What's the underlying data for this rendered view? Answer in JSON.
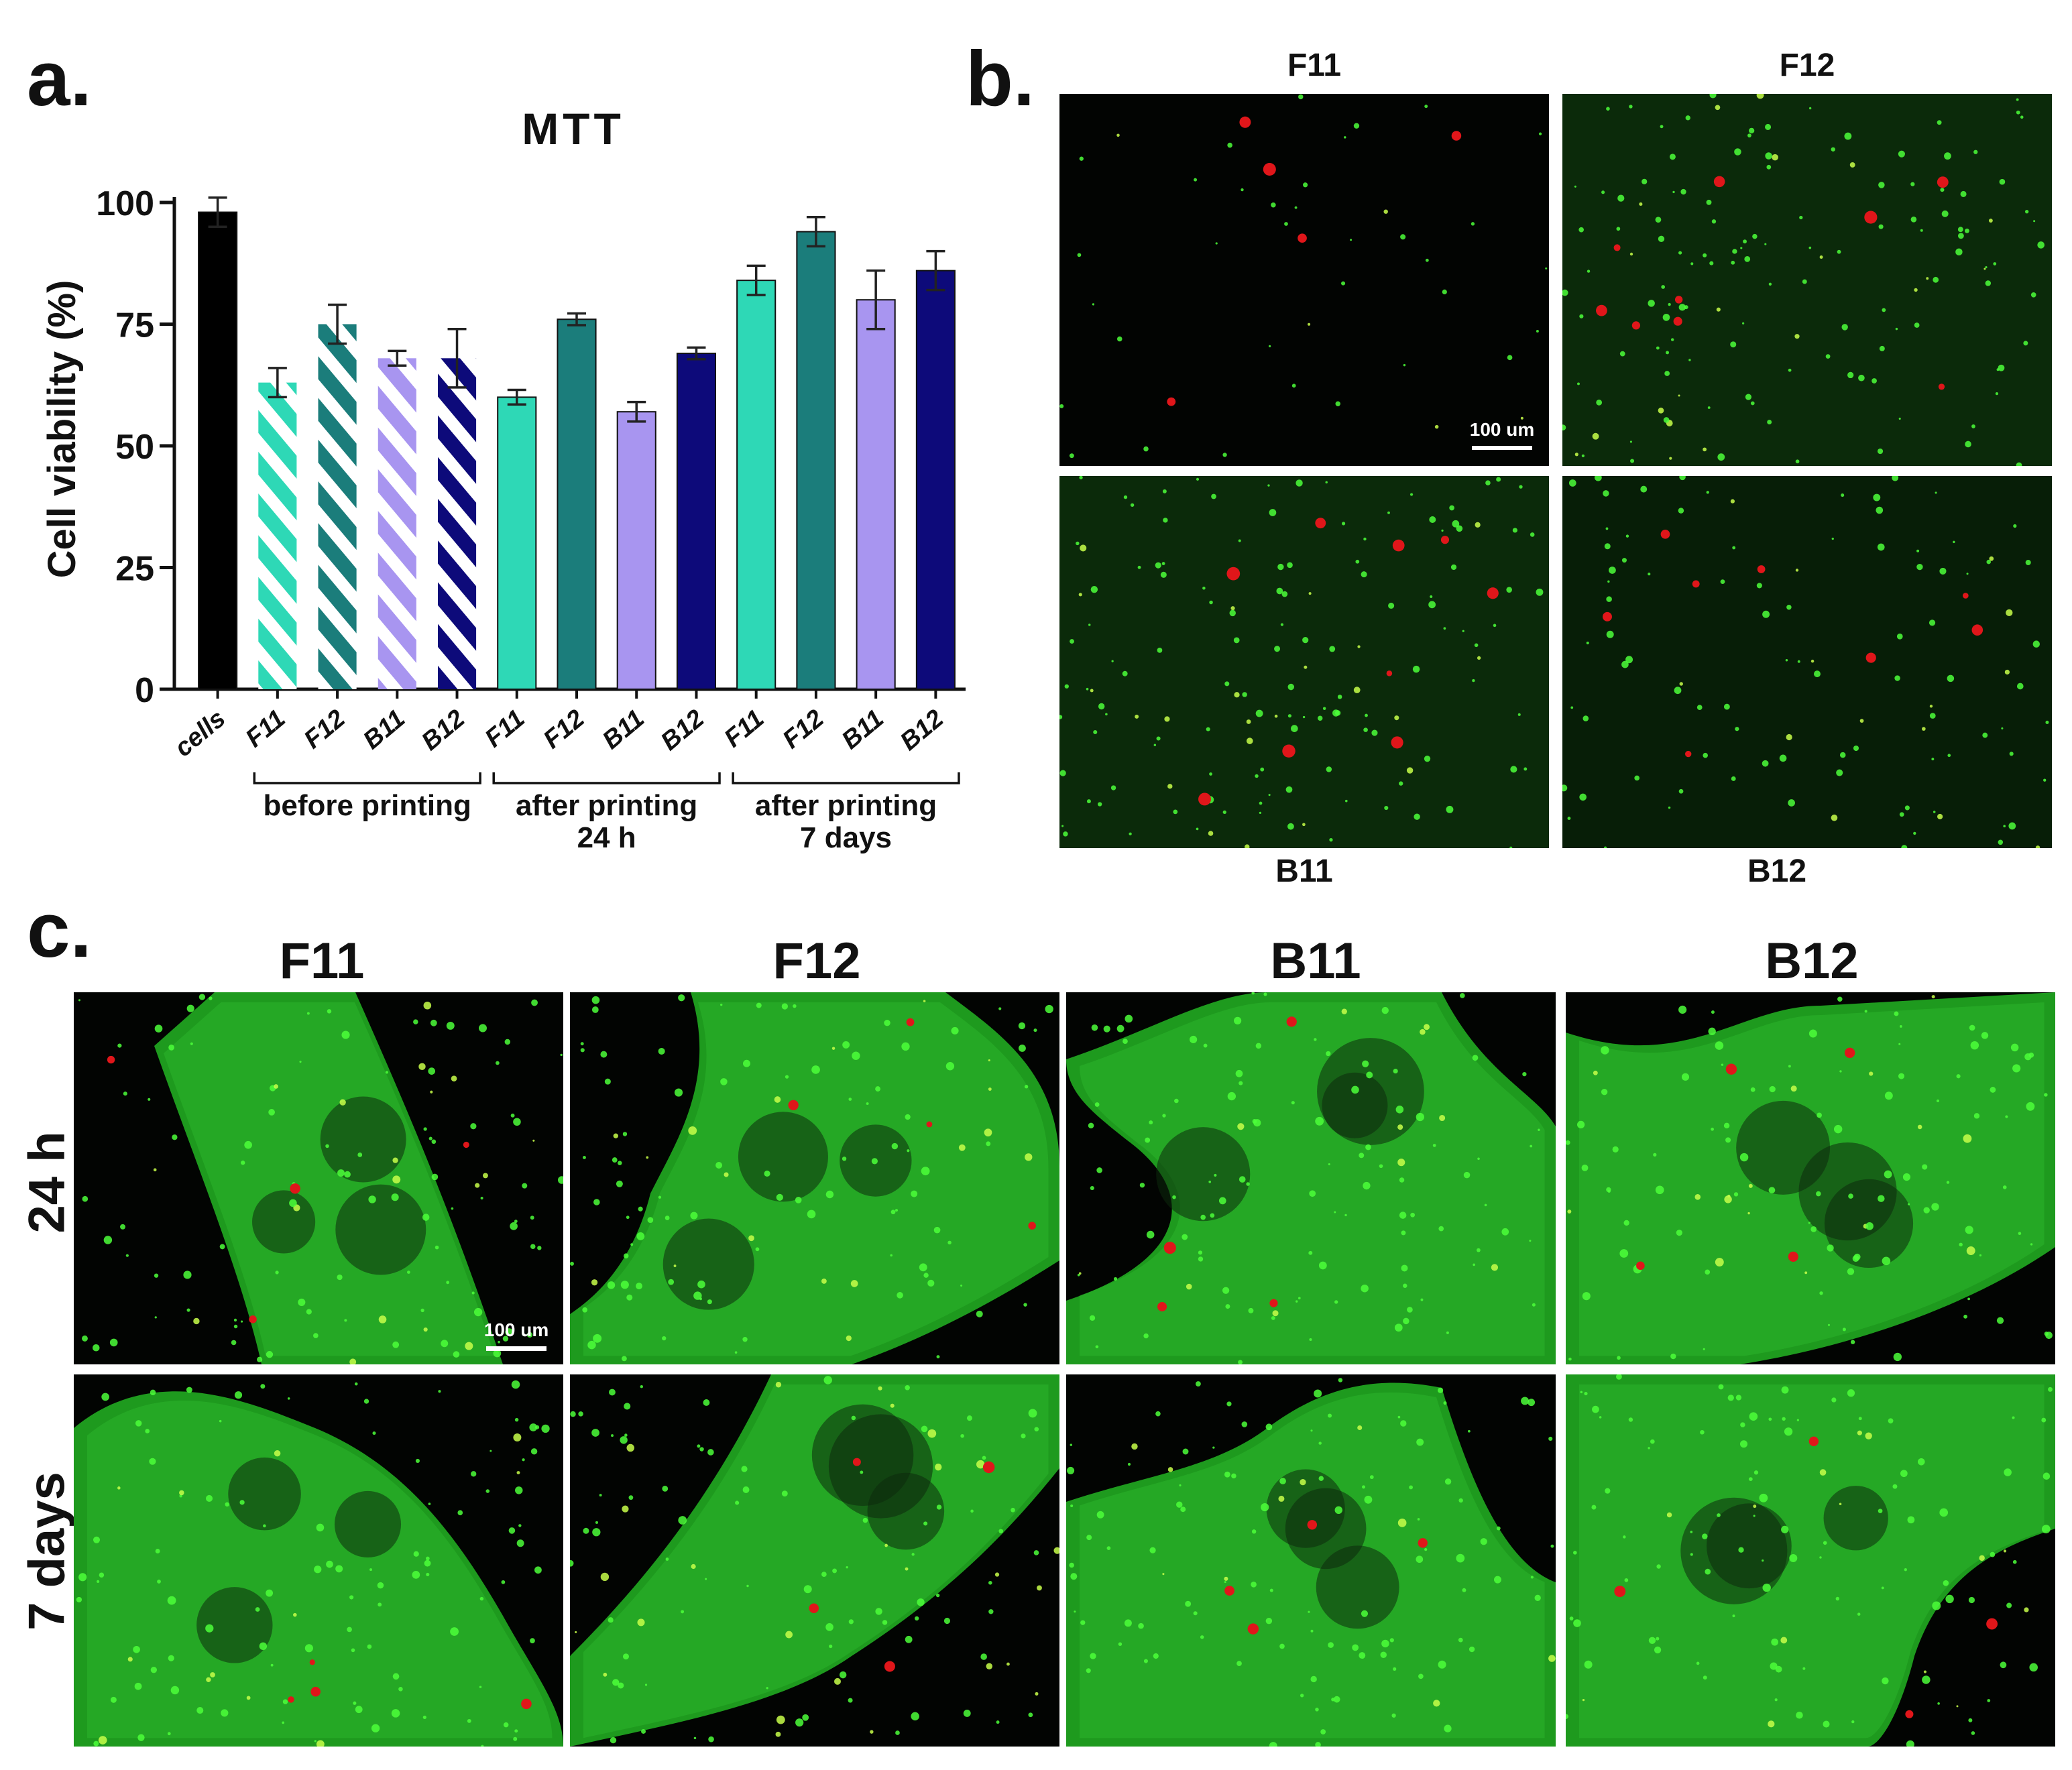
{
  "panels": {
    "a": "a.",
    "b": "b.",
    "c": "c."
  },
  "chart_data": {
    "type": "bar",
    "title": "MTT",
    "ylabel": "Cell viability (%)",
    "xlabel": "",
    "ylim": [
      0,
      100
    ],
    "yticks": [
      0,
      25,
      50,
      75,
      100
    ],
    "categories": [
      "cells",
      "F11",
      "F12",
      "B11",
      "B12",
      "F11",
      "F12",
      "B11",
      "B12",
      "F11",
      "F12",
      "B11",
      "B12"
    ],
    "values": [
      98,
      63,
      75,
      68,
      68,
      60,
      76,
      57,
      69,
      84,
      94,
      80,
      86
    ],
    "errors": [
      3,
      3,
      4,
      1.5,
      6,
      1.5,
      1.2,
      2,
      1.2,
      3,
      3,
      6,
      4
    ],
    "colors": [
      "#000000",
      "#2ed8b6",
      "#1b7d7b",
      "#a895f0",
      "#0d0a7a",
      "#2ed8b6",
      "#1b7d7b",
      "#a895f0",
      "#0d0a7a",
      "#2ed8b6",
      "#1b7d7b",
      "#a895f0",
      "#0d0a7a"
    ],
    "hatched": [
      false,
      true,
      true,
      true,
      true,
      false,
      false,
      false,
      false,
      false,
      false,
      false,
      false
    ],
    "groups": [
      {
        "lines": [
          "before printing"
        ],
        "from": 1,
        "to": 4
      },
      {
        "lines": [
          "after printing",
          "24 h"
        ],
        "from": 5,
        "to": 8
      },
      {
        "lines": [
          "after printing",
          "7 days"
        ],
        "from": 9,
        "to": 12
      }
    ]
  },
  "panel_b": {
    "labels_top": [
      "F11",
      "F12"
    ],
    "labels_bottom": [
      "B11",
      "B12"
    ],
    "scalebar": "100 um"
  },
  "panel_c": {
    "columns": [
      "F11",
      "F12",
      "B11",
      "B12"
    ],
    "rows": [
      "24 h",
      "7 days"
    ],
    "scalebar": "100 um"
  }
}
